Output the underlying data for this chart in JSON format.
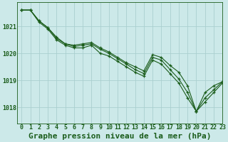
{
  "title": "Graphe pression niveau de la mer (hPa)",
  "background_color": "#cce9e9",
  "grid_color": "#aacfcf",
  "line_color": "#1a5c1a",
  "xlim": [
    -0.5,
    23
  ],
  "ylim": [
    1017.4,
    1021.9
  ],
  "yticks": [
    1018,
    1019,
    1020,
    1021
  ],
  "xticks": [
    0,
    1,
    2,
    3,
    4,
    5,
    6,
    7,
    8,
    9,
    10,
    11,
    12,
    13,
    14,
    15,
    16,
    17,
    18,
    19,
    20,
    21,
    22,
    23
  ],
  "series": [
    [
      1021.6,
      1021.6,
      1021.2,
      1020.95,
      1020.6,
      1020.35,
      1020.3,
      1020.35,
      1020.4,
      1020.2,
      1020.05,
      1019.85,
      1019.65,
      1019.5,
      1019.35,
      1019.95,
      1019.85,
      1019.55,
      1019.3,
      1018.8,
      1017.85,
      1018.55,
      1018.8,
      1018.95
    ],
    [
      1021.6,
      1021.6,
      1021.2,
      1020.95,
      1020.55,
      1020.35,
      1020.25,
      1020.3,
      1020.35,
      1020.15,
      1020.0,
      1019.8,
      1019.6,
      1019.4,
      1019.25,
      1019.85,
      1019.75,
      1019.4,
      1019.05,
      1018.55,
      1017.85,
      1018.35,
      1018.65,
      1018.95
    ],
    [
      1021.6,
      1021.6,
      1021.15,
      1020.9,
      1020.5,
      1020.3,
      1020.2,
      1020.2,
      1020.3,
      1020.0,
      1019.9,
      1019.7,
      1019.5,
      1019.3,
      1019.15,
      1019.75,
      1019.6,
      1019.25,
      1018.9,
      1018.35,
      1017.85,
      1018.2,
      1018.55,
      1018.9
    ]
  ],
  "fontsize_title": 8,
  "fontsize_ticks": 6,
  "marker": "+",
  "markersize": 3.5,
  "linewidth": 0.8
}
